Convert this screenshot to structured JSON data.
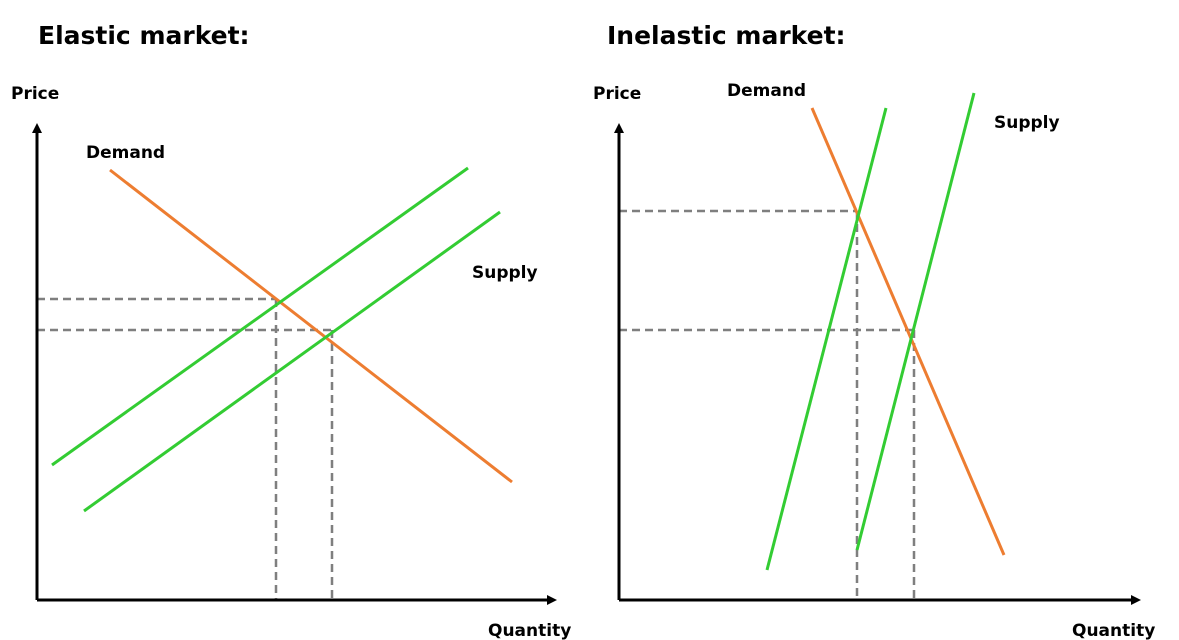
{
  "panels": [
    {
      "title": "Elastic market:",
      "y_axis_label": "Price",
      "x_axis_label": "Quantity",
      "demand_label": "Demand",
      "supply_label": "Supply"
    },
    {
      "title": "Inelastic market:",
      "y_axis_label": "Price",
      "x_axis_label": "Quantity",
      "demand_label": "Demand",
      "supply_label": "Supply"
    }
  ]
}
